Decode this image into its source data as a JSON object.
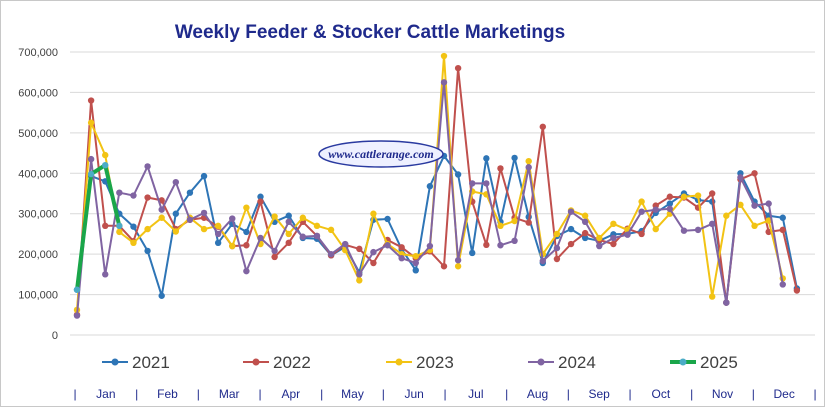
{
  "chart_data": {
    "type": "line",
    "title": "Weekly Feeder & Stocker Cattle Marketings",
    "watermark": "www.cattlerange.com",
    "y_ticks": [
      "0",
      "100,000",
      "200,000",
      "300,000",
      "400,000",
      "500,000",
      "600,000",
      "700,000"
    ],
    "ylim": [
      0,
      700000
    ],
    "grid": true,
    "legend_position": "bottom",
    "x_separator": "|",
    "months": [
      "Jan",
      "Feb",
      "Mar",
      "Apr",
      "May",
      "Jun",
      "Jul",
      "Aug",
      "Sep",
      "Oct",
      "Nov",
      "Dec"
    ],
    "weeks": 53,
    "series": [
      {
        "name": "2021",
        "color": "#2e75b6",
        "values": [
          112000,
          393000,
          380000,
          300000,
          268000,
          208000,
          97000,
          300000,
          352000,
          393000,
          228000,
          275000,
          255000,
          342000,
          280000,
          295000,
          240000,
          238000,
          197000,
          218000,
          155000,
          285000,
          287000,
          212000,
          160000,
          368000,
          443000,
          397000,
          203000,
          437000,
          280000,
          438000,
          292000,
          178000,
          245000,
          262000,
          240000,
          233000,
          249000,
          250000,
          257000,
          302000,
          325000,
          350000,
          334000,
          330000,
          80000,
          400000,
          330000,
          295000,
          290000,
          115000
        ]
      },
      {
        "name": "2022",
        "color": "#c0504d",
        "values": [
          50000,
          580000,
          270000,
          270000,
          232000,
          340000,
          333000,
          262000,
          285000,
          290000,
          268000,
          220000,
          222000,
          330000,
          193000,
          228000,
          280000,
          245000,
          197000,
          223000,
          213000,
          178000,
          235000,
          217000,
          190000,
          207000,
          170000,
          660000,
          330000,
          223000,
          412000,
          290000,
          278000,
          515000,
          188000,
          225000,
          252000,
          235000,
          225000,
          263000,
          250000,
          320000,
          342000,
          340000,
          315000,
          350000,
          80000,
          385000,
          400000,
          255000,
          260000,
          110000
        ]
      },
      {
        "name": "2023",
        "color": "#f2c314",
        "values": [
          62000,
          525000,
          445000,
          255000,
          228000,
          262000,
          290000,
          256000,
          290000,
          262000,
          270000,
          220000,
          315000,
          225000,
          293000,
          250000,
          290000,
          270000,
          260000,
          210000,
          135000,
          300000,
          225000,
          200000,
          195000,
          210000,
          690000,
          170000,
          355000,
          348000,
          270000,
          282000,
          430000,
          200000,
          250000,
          308000,
          295000,
          240000,
          275000,
          260000,
          330000,
          262000,
          300000,
          342000,
          345000,
          95000,
          295000,
          322000,
          270000,
          283000,
          140000
        ]
      },
      {
        "name": "2024",
        "color": "#8064a2",
        "values": [
          48000,
          435000,
          150000,
          352000,
          345000,
          417000,
          310000,
          378000,
          285000,
          302000,
          250000,
          288000,
          158000,
          240000,
          208000,
          280000,
          243000,
          245000,
          200000,
          225000,
          150000,
          205000,
          222000,
          190000,
          178000,
          220000,
          625000,
          185000,
          375000,
          375000,
          222000,
          233000,
          415000,
          183000,
          215000,
          305000,
          280000,
          220000,
          240000,
          248000,
          305000,
          310000,
          312000,
          258000,
          260000,
          275000,
          80000,
          390000,
          320000,
          325000,
          125000
        ]
      },
      {
        "name": "2025",
        "color": "#1aa64a",
        "values": [
          112000,
          398000,
          420000,
          270000
        ]
      }
    ]
  }
}
